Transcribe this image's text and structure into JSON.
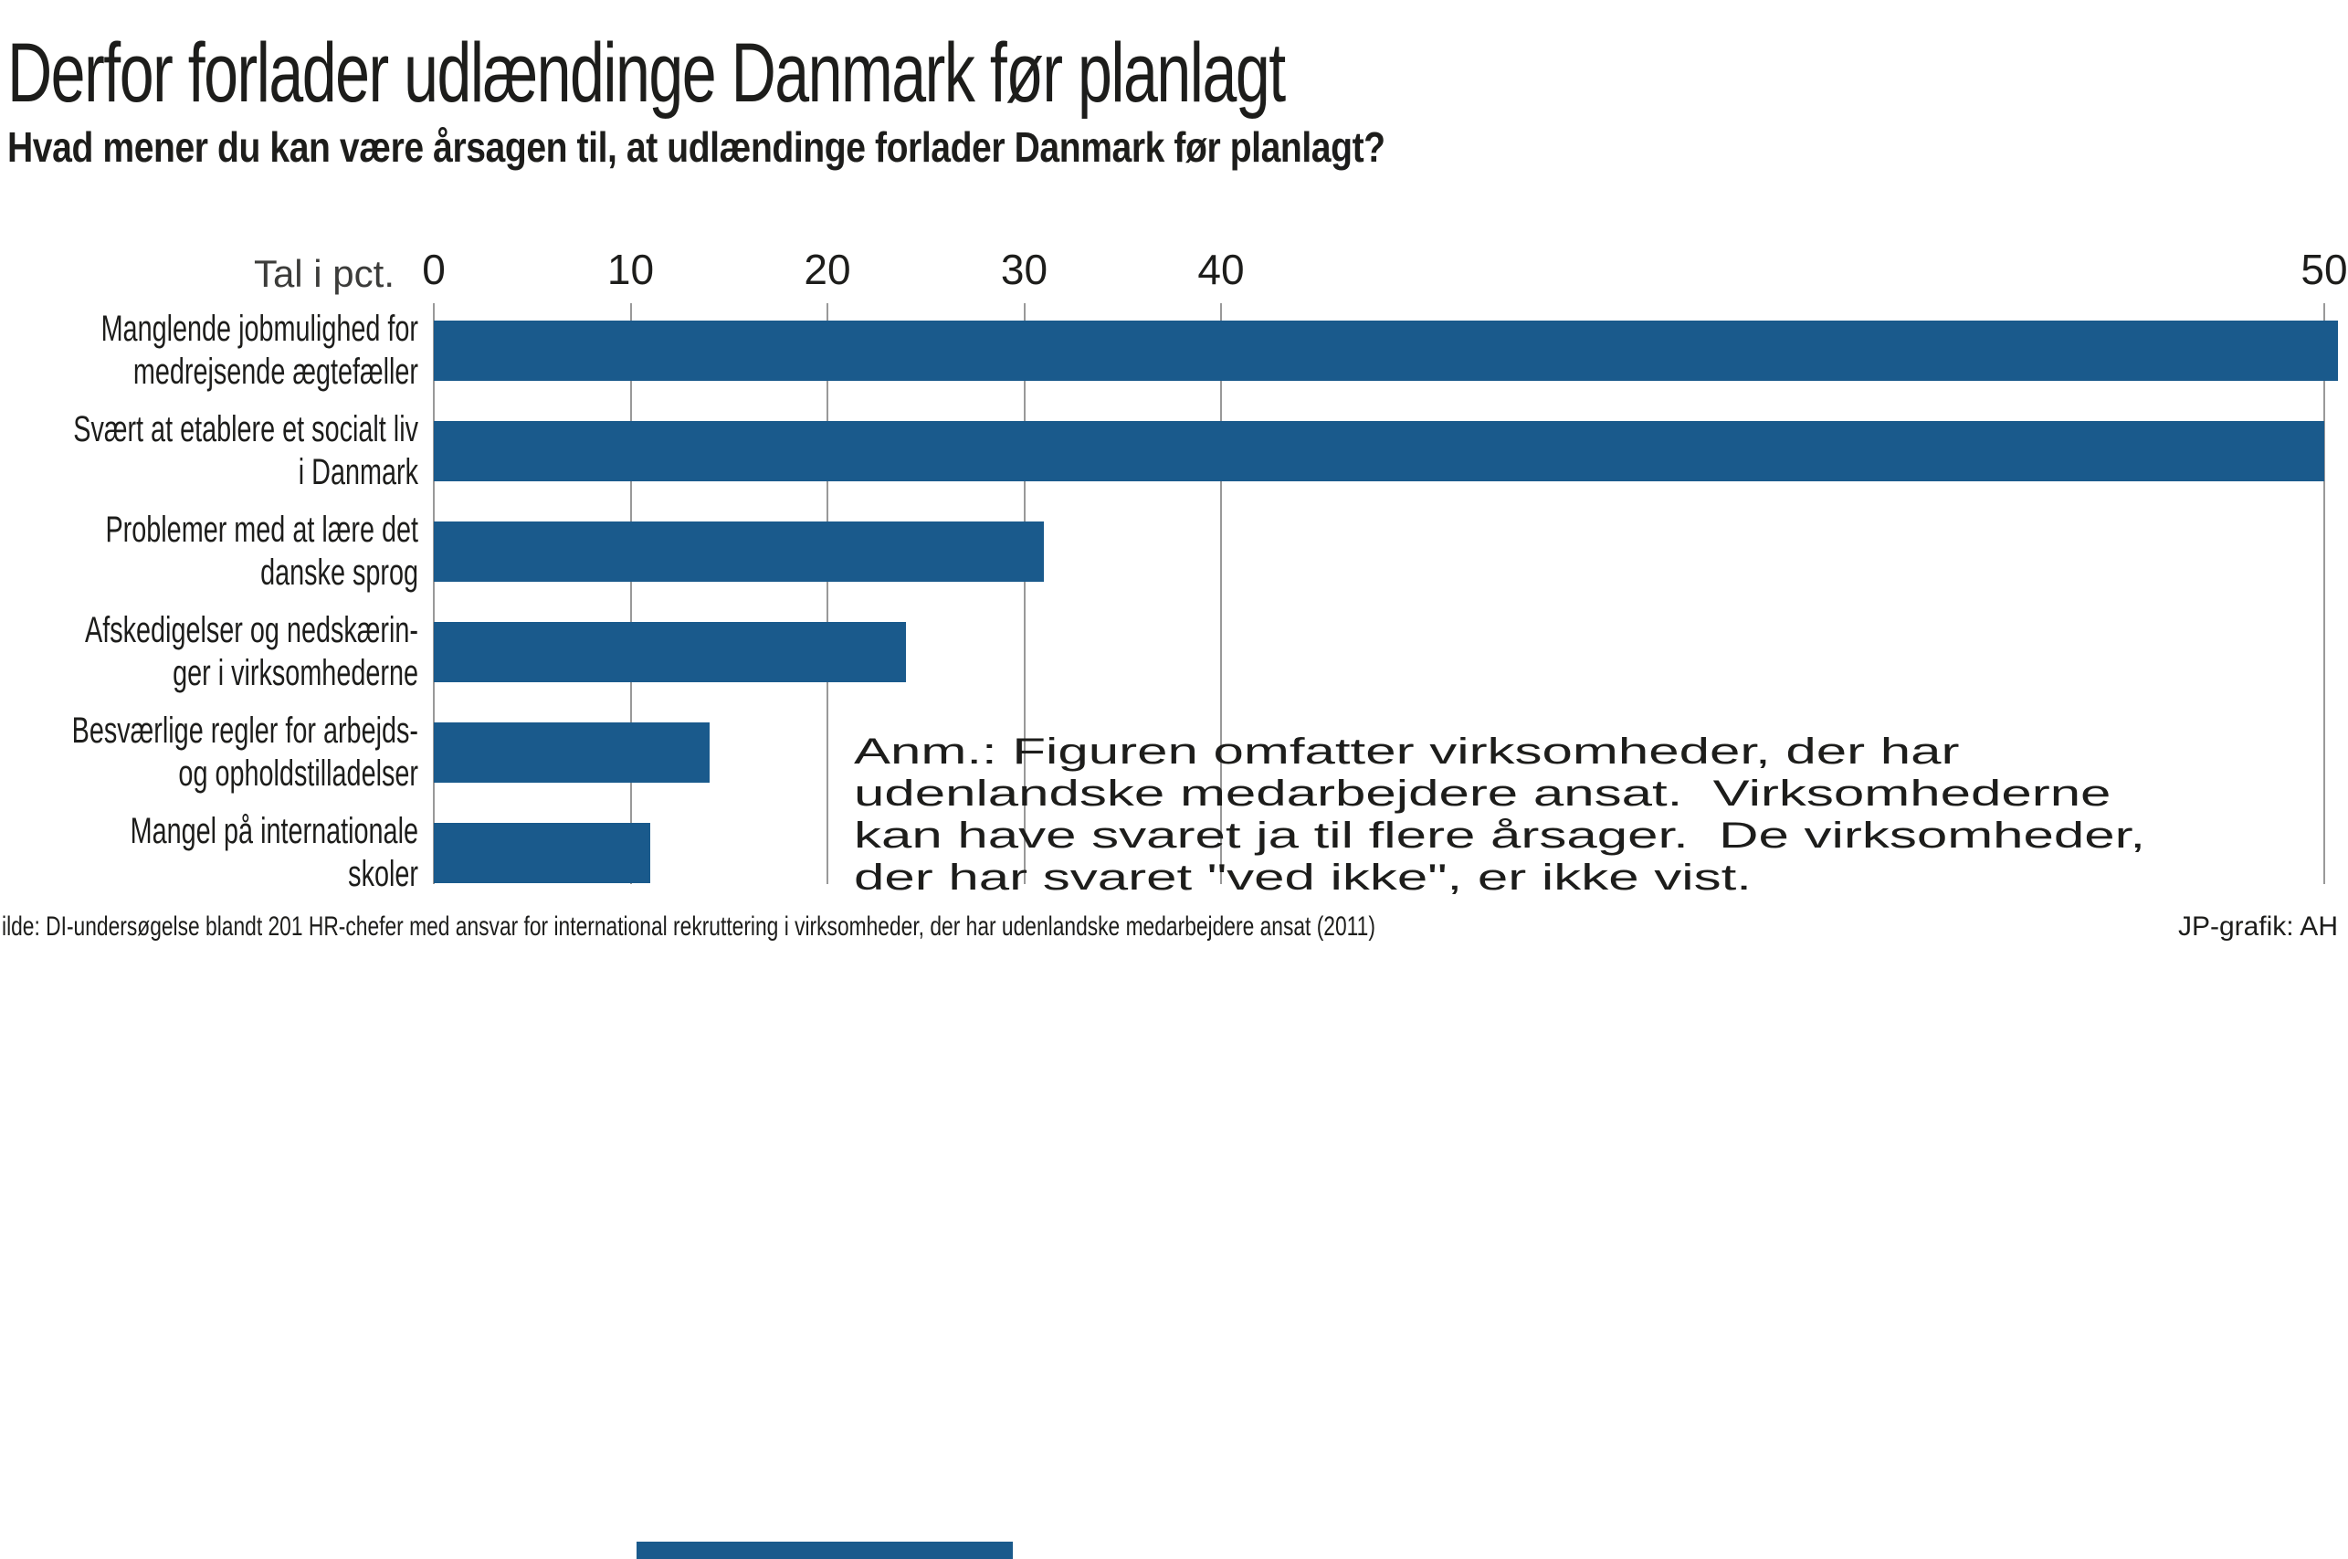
{
  "title": "Derfor forlader udlændinge Danmark før planlagt",
  "subtitle": "Hvad mener du kan være årsagen til, at udlændinge forlader Danmark før planlagt?",
  "axis": {
    "unit_label": "Tal i pct."
  },
  "chart_data": {
    "type": "bar",
    "orientation": "horizontal",
    "title": "Derfor forlader udlændinge Danmark før planlagt",
    "xlabel": "Tal i pct.",
    "xticks": [
      0,
      10,
      20,
      30,
      40,
      50
    ],
    "xlim": [
      0,
      50
    ],
    "grid": true,
    "bar_color": "#1a5a8c",
    "categories": [
      "Manglende jobmulighed for medrejsende ægtefæller",
      "Svært at etablere et socialt liv i Danmark",
      "Problemer med at lære det danske sprog",
      "Afskedigelser og nedskæringer i virksomhederne",
      "Besværlige regler for arbejds- og opholdstilladelser",
      "Mangel på internationale skoler"
    ],
    "category_label_lines": [
      [
        "Manglende jobmulighed for",
        "medrejsende ægtefæller"
      ],
      [
        "Svært at etablere et socialt liv",
        "i Danmark"
      ],
      [
        "Problemer med at lære det",
        "danske sprog"
      ],
      [
        "Afskedigelser og nedskærin-",
        "ger i virksomhederne"
      ],
      [
        "Besværlige regler for arbejds-",
        "og opholdstilladelser"
      ],
      [
        "Mangel på internationale",
        "skoler"
      ]
    ],
    "values": [
      51,
      50,
      31,
      24,
      14,
      11
    ]
  },
  "annotation": {
    "lines": [
      "Anm.: Figuren omfatter virksomheder, der har",
      "udenlandske medarbejdere ansat.  Virksomhederne",
      "kan have svaret ja til flere årsager.  De virksomheder,",
      "der har svaret \"ved ikke\", er ikke vist."
    ]
  },
  "footer": {
    "source": "ilde: DI-undersøgelse blandt 201 HR-chefer med ansvar for international rekruttering i virksomheder, der har udenlandske medarbejdere ansat (2011)",
    "credit": "JP-grafik: AH"
  },
  "colors": {
    "bar": "#1a5a8c",
    "gridline": "#999999",
    "text": "#1d1d1b"
  }
}
